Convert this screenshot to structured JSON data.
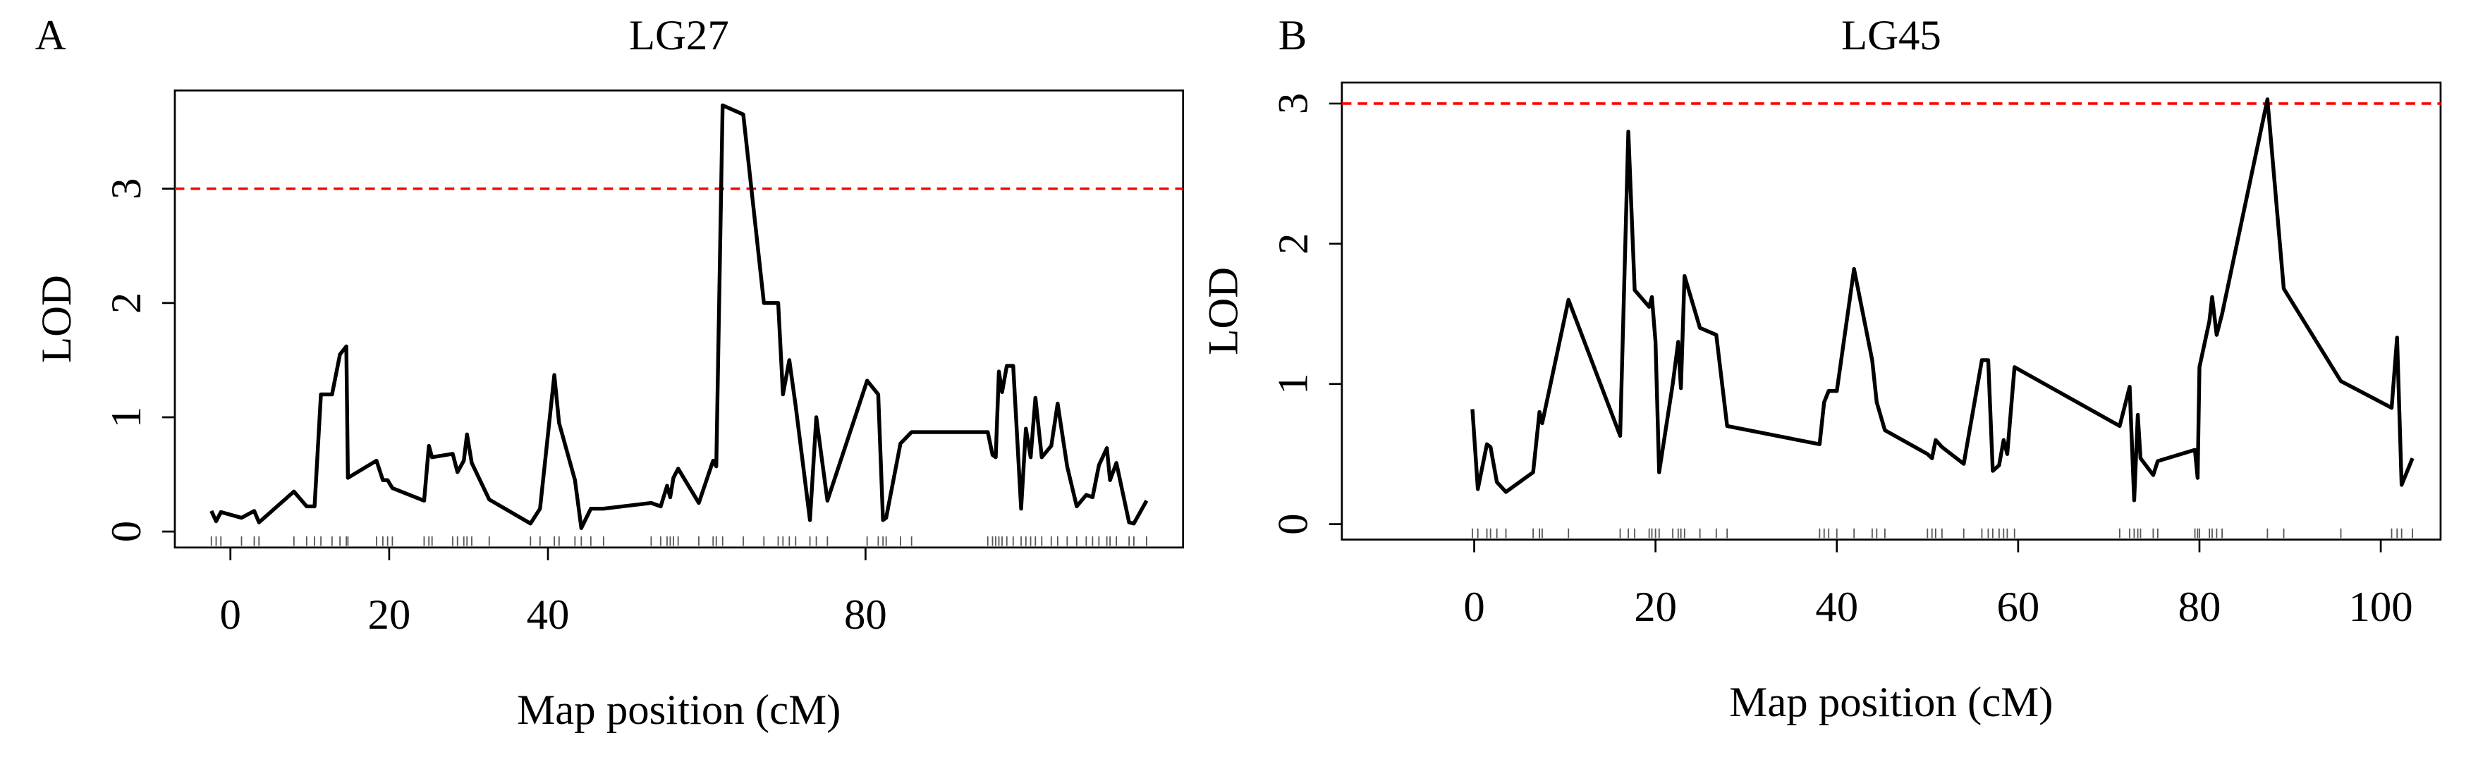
{
  "chart_data": [
    {
      "type": "line",
      "panel": "A",
      "title": "LG27",
      "xlabel": "Map position (cM)",
      "ylabel": "LOD",
      "color": "#000000",
      "threshold": 3,
      "threshold_color": "#ff0000",
      "xlim": [
        -7,
        120
      ],
      "ylim": [
        -0.14,
        3.86
      ],
      "xticks": [
        0,
        20,
        40,
        80
      ],
      "yticks": [
        0,
        1,
        2,
        3
      ],
      "x": [
        -2.4,
        -1.8,
        -1.2,
        1.4,
        3.0,
        3.6,
        8.0,
        9.6,
        10.6,
        11.4,
        12.8,
        13.8,
        14.6,
        14.8,
        18.4,
        19.2,
        19.8,
        20.4,
        24.4,
        25.0,
        25.4,
        28.0,
        28.6,
        29.4,
        29.8,
        30.4,
        32.6,
        37.8,
        39.0,
        40.8,
        41.4,
        43.4,
        44.2,
        45.4,
        47.0,
        53.0,
        54.2,
        55.0,
        55.4,
        55.8,
        56.4,
        59.0,
        60.8,
        61.2,
        62.0,
        64.6,
        67.2,
        69.0,
        69.6,
        70.4,
        71.2,
        73.0,
        73.8,
        75.2,
        80.2,
        81.6,
        82.2,
        82.6,
        84.4,
        85.8,
        95.4,
        96.0,
        96.4,
        96.8,
        97.2,
        97.8,
        98.6,
        99.6,
        100.2,
        100.8,
        101.4,
        102.2,
        103.4,
        104.2,
        105.4,
        106.6,
        107.8,
        108.6,
        109.4,
        110.4,
        110.8,
        111.6,
        113.2,
        113.8,
        115.4
      ],
      "values": [
        0.18,
        0.09,
        0.17,
        0.12,
        0.18,
        0.08,
        0.35,
        0.22,
        0.22,
        1.2,
        1.2,
        1.55,
        1.62,
        0.47,
        0.62,
        0.45,
        0.45,
        0.38,
        0.27,
        0.75,
        0.65,
        0.68,
        0.52,
        0.62,
        0.85,
        0.6,
        0.28,
        0.07,
        0.2,
        1.37,
        0.95,
        0.45,
        0.03,
        0.2,
        0.2,
        0.25,
        0.22,
        0.4,
        0.3,
        0.47,
        0.55,
        0.25,
        0.62,
        0.57,
        3.73,
        3.65,
        2.0,
        2.0,
        1.2,
        1.5,
        1.1,
        0.1,
        1.0,
        0.27,
        1.32,
        1.2,
        0.1,
        0.12,
        0.77,
        0.87,
        0.87,
        0.67,
        0.65,
        1.4,
        1.22,
        1.45,
        1.45,
        0.2,
        0.9,
        0.65,
        1.17,
        0.65,
        0.75,
        1.12,
        0.57,
        0.22,
        0.32,
        0.3,
        0.58,
        0.73,
        0.45,
        0.6,
        0.08,
        0.07,
        0.27
      ]
    },
    {
      "type": "line",
      "panel": "B",
      "title": "LG45",
      "xlabel": "Map position (cM)",
      "ylabel": "LOD",
      "color": "#000000",
      "threshold": 3,
      "threshold_color": "#ff0000",
      "xlim": [
        -14.6,
        106.6
      ],
      "ylim": [
        -0.11,
        3.15
      ],
      "xticks": [
        0,
        20,
        40,
        60,
        80,
        100
      ],
      "yticks": [
        0,
        1,
        2,
        3
      ],
      "x": [
        -0.2,
        0.4,
        1.4,
        1.8,
        2.5,
        3.5,
        6.5,
        7.2,
        7.5,
        10.4,
        16.1,
        17.0,
        17.7,
        19.3,
        19.6,
        20.0,
        20.4,
        21.9,
        22.5,
        22.8,
        23.2,
        24.9,
        26.7,
        27.9,
        38.1,
        38.6,
        39.1,
        40.0,
        41.9,
        43.9,
        44.4,
        45.3,
        50.0,
        50.5,
        50.9,
        51.6,
        54.0,
        56.0,
        56.7,
        57.2,
        57.9,
        58.4,
        58.8,
        59.6,
        71.2,
        72.3,
        72.8,
        73.2,
        73.5,
        74.9,
        75.4,
        79.5,
        79.8,
        80.0,
        81.1,
        81.4,
        81.9,
        82.5,
        87.5,
        89.3,
        95.6,
        101.2,
        101.8,
        102.3,
        103.5
      ],
      "values": [
        0.82,
        0.25,
        0.57,
        0.55,
        0.3,
        0.23,
        0.37,
        0.8,
        0.72,
        1.6,
        0.63,
        2.8,
        1.67,
        1.55,
        1.62,
        1.3,
        0.37,
        1.0,
        1.3,
        0.97,
        1.77,
        1.4,
        1.35,
        0.7,
        0.57,
        0.87,
        0.95,
        0.95,
        1.82,
        1.17,
        0.87,
        0.67,
        0.5,
        0.47,
        0.6,
        0.55,
        0.43,
        1.17,
        1.17,
        0.38,
        0.42,
        0.6,
        0.5,
        1.12,
        0.7,
        0.98,
        0.17,
        0.78,
        0.47,
        0.35,
        0.45,
        0.53,
        0.33,
        1.12,
        1.45,
        1.62,
        1.35,
        1.5,
        3.03,
        1.68,
        1.02,
        0.83,
        1.33,
        0.28,
        0.47
      ]
    }
  ]
}
